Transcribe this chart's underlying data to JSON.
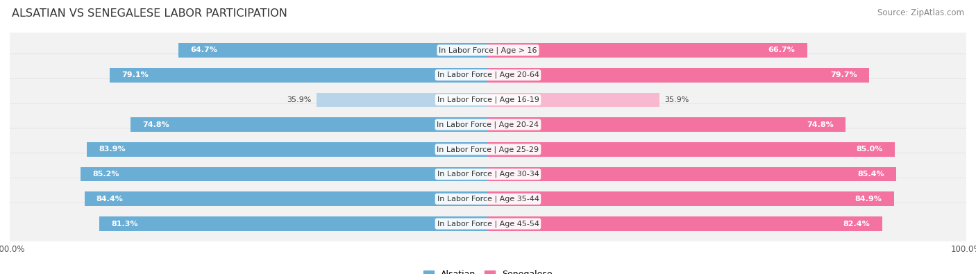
{
  "title": "ALSATIAN VS SENEGALESE LABOR PARTICIPATION",
  "source": "Source: ZipAtlas.com",
  "categories": [
    "In Labor Force | Age > 16",
    "In Labor Force | Age 20-64",
    "In Labor Force | Age 16-19",
    "In Labor Force | Age 20-24",
    "In Labor Force | Age 25-29",
    "In Labor Force | Age 30-34",
    "In Labor Force | Age 35-44",
    "In Labor Force | Age 45-54"
  ],
  "alsatian_values": [
    64.7,
    79.1,
    35.9,
    74.8,
    83.9,
    85.2,
    84.4,
    81.3
  ],
  "senegalese_values": [
    66.7,
    79.7,
    35.9,
    74.8,
    85.0,
    85.4,
    84.9,
    82.4
  ],
  "alsatian_color": "#6aaed6",
  "alsatian_color_light": "#b8d4e8",
  "senegalese_color": "#f472a0",
  "senegalese_color_light": "#f8b8d0",
  "row_bg_color": "#f2f2f2",
  "row_bg_outline": "#e0e0e0",
  "max_value": 100.0,
  "label_fontsize": 8.5,
  "title_fontsize": 11.5,
  "source_fontsize": 8.5,
  "legend_fontsize": 9,
  "category_fontsize": 8,
  "value_fontsize": 8,
  "low_threshold": 50
}
